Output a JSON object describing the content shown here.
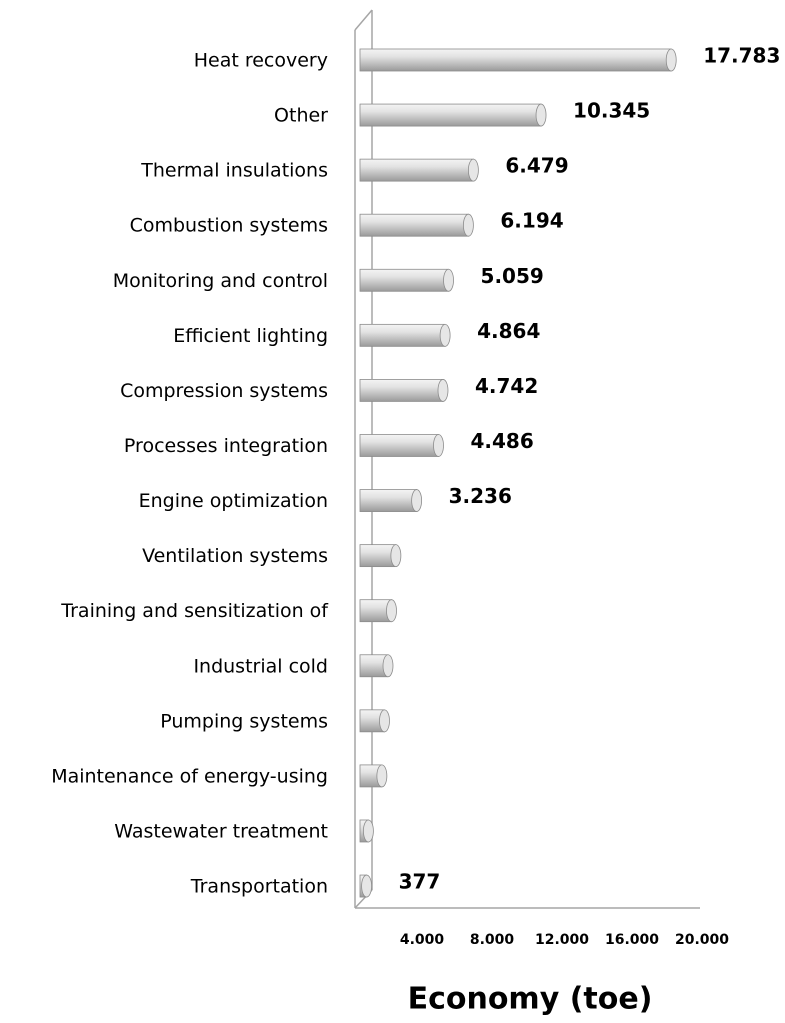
{
  "chart_data": {
    "type": "bar",
    "orientation": "horizontal",
    "x_label": "Economy (toe)",
    "categories": [
      "Heat recovery",
      "Other",
      "Thermal insulations",
      "Combustion systems",
      "Monitoring and control",
      "Efficient lighting",
      "Compression systems",
      "Processes integration",
      "Engine optimization",
      "Ventilation systems",
      "Training and sensitization of",
      "Industrial cold",
      "Pumping systems",
      "Maintenance of energy-using",
      "Wastewater treatment",
      "Transportation"
    ],
    "values": [
      17783,
      10345,
      6479,
      6194,
      5059,
      4864,
      4742,
      4486,
      3236,
      2050,
      1800,
      1600,
      1400,
      1250,
      480,
      377
    ],
    "value_labels": [
      "17.783",
      "10.345",
      "6.479",
      "6.194",
      "5.059",
      "4.864",
      "4.742",
      "4.486",
      "3.236",
      null,
      null,
      null,
      null,
      null,
      null,
      "377"
    ],
    "color": "#c8c8c8",
    "xlim": [
      0,
      20000
    ],
    "xticks": [
      {
        "value": 4000,
        "label": "4.000"
      },
      {
        "value": 8000,
        "label": "8.000"
      },
      {
        "value": 12000,
        "label": "12.000"
      },
      {
        "value": 16000,
        "label": "16.000"
      },
      {
        "value": 20000,
        "label": "20.000"
      }
    ],
    "grid": false
  }
}
